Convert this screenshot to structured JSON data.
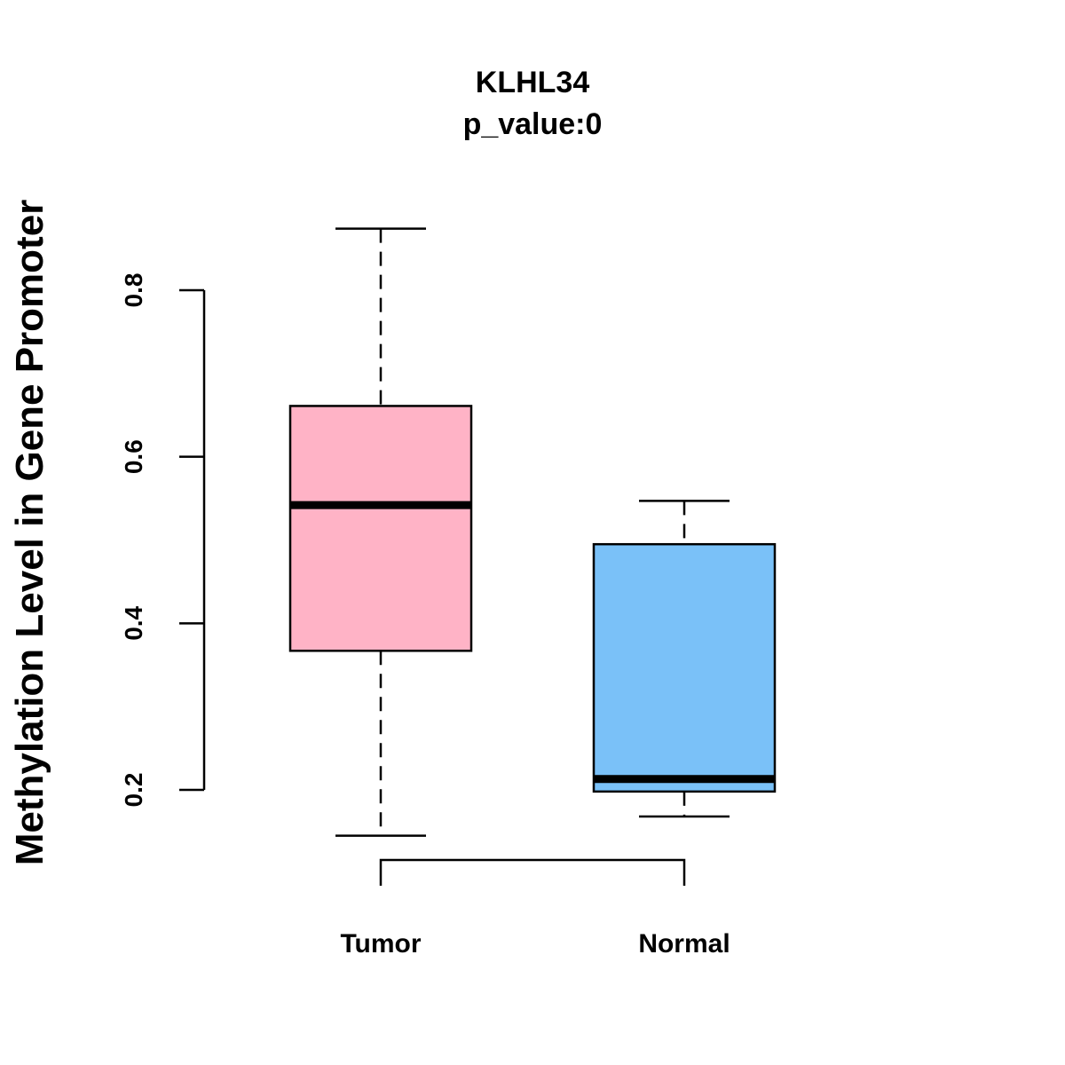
{
  "chart_data": {
    "type": "boxplot",
    "title": "KLHL34",
    "subtitle": "p_value:0",
    "xlabel": "",
    "ylabel": "Methylation Level in Gene Promoter",
    "ylim": [
      0.2,
      0.8
    ],
    "yticks": [
      "0.2",
      "0.4",
      "0.6",
      "0.8"
    ],
    "grid": false,
    "categories": [
      "Tumor",
      "Normal"
    ],
    "boxes": [
      {
        "name": "Tumor",
        "whisker_low": 0.145,
        "q1": 0.367,
        "median": 0.542,
        "q3": 0.661,
        "whisker_high": 0.874,
        "color": "#FFB3C6"
      },
      {
        "name": "Normal",
        "whisker_low": 0.168,
        "q1": 0.198,
        "median": 0.213,
        "q3": 0.495,
        "whisker_high": 0.547,
        "color": "#7AC1F8"
      }
    ]
  }
}
